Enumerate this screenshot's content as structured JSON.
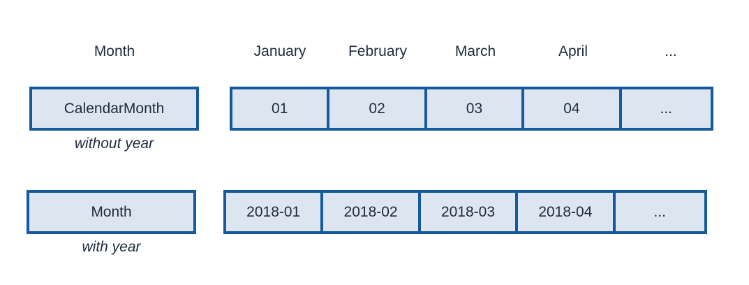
{
  "header": {
    "type_label": "Month",
    "months": [
      "January",
      "February",
      "March",
      "April",
      "..."
    ]
  },
  "row_without_year": {
    "type": "CalendarMonth",
    "caption": "without year",
    "values": [
      "01",
      "02",
      "03",
      "04",
      "..."
    ]
  },
  "row_with_year": {
    "type": "Month",
    "caption": "with year",
    "values": [
      "2018-01",
      "2018-02",
      "2018-03",
      "2018-04",
      "..."
    ]
  },
  "colors": {
    "border": "#145a9c",
    "fill": "#dde5f0",
    "text": "#1e2b3c"
  }
}
